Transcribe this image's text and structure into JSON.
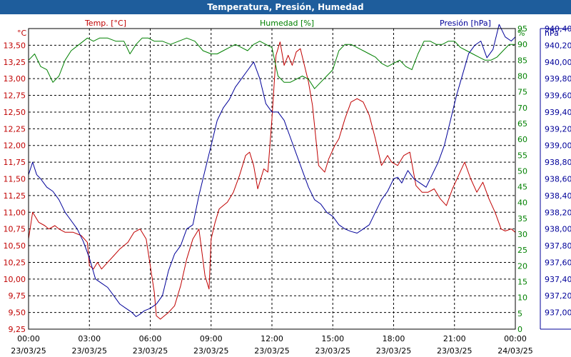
{
  "chart_data": {
    "type": "line",
    "title": "Temperatura, Presión, Humedad",
    "x_ticks": [
      {
        "time": "00:00",
        "date": "23/03/25"
      },
      {
        "time": "03:00",
        "date": "23/03/25"
      },
      {
        "time": "06:00",
        "date": "23/03/25"
      },
      {
        "time": "09:00",
        "date": "23/03/25"
      },
      {
        "time": "12:00",
        "date": "23/03/25"
      },
      {
        "time": "15:00",
        "date": "23/03/25"
      },
      {
        "time": "18:00",
        "date": "23/03/25"
      },
      {
        "time": "21:00",
        "date": "23/03/25"
      },
      {
        "time": "00:00",
        "date": "24/03/25"
      }
    ],
    "x_range_hours": [
      0,
      24
    ],
    "axes": {
      "temp": {
        "unit": "°C",
        "label": "Temp. [°C]",
        "min": 9.25,
        "max": 13.75,
        "color": "#c00000",
        "ticks": [
          "13,50",
          "13,25",
          "13,00",
          "12,75",
          "12,50",
          "12,25",
          "12,00",
          "11,75",
          "11,50",
          "11,25",
          "11,00",
          "10,75",
          "10,50",
          "10,25",
          "10,00",
          "9,75",
          "9,50",
          "9,25"
        ]
      },
      "hum": {
        "unit": "%",
        "label": "Humedad [%]",
        "min": 0,
        "max": 95,
        "color": "#008000",
        "ticks": [
          "95",
          "90",
          "85",
          "80",
          "75",
          "70",
          "65",
          "60",
          "55",
          "50",
          "45",
          "40",
          "35",
          "30",
          "25",
          "20",
          "15",
          "10",
          "5",
          "0"
        ]
      },
      "pres": {
        "unit": "hPa",
        "label": "Presión [hPa]",
        "min": 936.8,
        "max": 940.4,
        "color": "#000099",
        "ticks": [
          "940,40",
          "940,20",
          "940,00",
          "939,80",
          "939,60",
          "939,40",
          "939,20",
          "939,00",
          "938,80",
          "938,60",
          "938,40",
          "938,20",
          "938,00",
          "937,80",
          "937,60",
          "937,40",
          "937,20",
          "937,00"
        ]
      }
    },
    "series": [
      {
        "name": "Temp. [°C]",
        "axis": "temp",
        "color": "#c00000",
        "x": [
          0,
          0.2,
          0.5,
          0.8,
          1,
          1.3,
          1.5,
          1.8,
          2.2,
          2.6,
          2.9,
          3.0,
          3.2,
          3.4,
          3.6,
          3.9,
          4.2,
          4.5,
          4.9,
          5.2,
          5.5,
          5.8,
          6.0,
          6.2,
          6.3,
          6.5,
          6.7,
          6.9,
          7.2,
          7.5,
          7.8,
          8.1,
          8.4,
          8.7,
          8.9,
          9.0,
          9.2,
          9.4,
          9.6,
          9.8,
          10.1,
          10.4,
          10.7,
          10.9,
          11.1,
          11.3,
          11.6,
          11.8,
          12.0,
          12.2,
          12.4,
          12.6,
          12.8,
          13.0,
          13.2,
          13.4,
          13.6,
          13.8,
          14.0,
          14.3,
          14.6,
          14.8,
          15.1,
          15.3,
          15.6,
          15.9,
          16.2,
          16.5,
          16.8,
          17.1,
          17.4,
          17.7,
          17.9,
          18.2,
          18.5,
          18.8,
          19.1,
          19.4,
          19.7,
          20.0,
          20.3,
          20.6,
          20.9,
          21.2,
          21.5,
          21.8,
          22.1,
          22.4,
          22.7,
          23.0,
          23.3,
          23.5,
          23.8,
          24.0
        ],
        "values": [
          10.6,
          11.0,
          10.85,
          10.8,
          10.75,
          10.8,
          10.75,
          10.7,
          10.7,
          10.65,
          10.55,
          10.2,
          10.15,
          10.25,
          10.15,
          10.25,
          10.35,
          10.45,
          10.55,
          10.7,
          10.75,
          10.6,
          10.2,
          9.8,
          9.45,
          9.4,
          9.45,
          9.5,
          9.6,
          9.9,
          10.3,
          10.6,
          10.75,
          10.05,
          9.85,
          10.6,
          10.85,
          11.05,
          11.1,
          11.15,
          11.3,
          11.55,
          11.85,
          11.9,
          11.7,
          11.35,
          11.65,
          11.6,
          12.4,
          13.35,
          13.55,
          13.2,
          13.35,
          13.2,
          13.4,
          13.45,
          13.2,
          12.95,
          12.6,
          11.7,
          11.6,
          11.8,
          12.0,
          12.1,
          12.4,
          12.65,
          12.7,
          12.65,
          12.45,
          12.1,
          11.7,
          11.85,
          11.75,
          11.7,
          11.85,
          11.9,
          11.4,
          11.3,
          11.3,
          11.35,
          11.2,
          11.1,
          11.35,
          11.55,
          11.75,
          11.5,
          11.3,
          11.45,
          11.2,
          11.0,
          10.75,
          10.72,
          10.75,
          10.7
        ]
      },
      {
        "name": "Humedad [%]",
        "axis": "hum",
        "color": "#008000",
        "x": [
          0,
          0.3,
          0.6,
          0.9,
          1.2,
          1.5,
          1.8,
          2.1,
          2.5,
          2.9,
          3.2,
          3.5,
          3.9,
          4.3,
          4.7,
          5.0,
          5.3,
          5.6,
          5.9,
          6.2,
          6.6,
          7.0,
          7.4,
          7.8,
          8.2,
          8.6,
          9.0,
          9.3,
          9.6,
          9.9,
          10.2,
          10.5,
          10.8,
          11.1,
          11.4,
          11.7,
          12.0,
          12.3,
          12.6,
          12.9,
          13.2,
          13.5,
          13.8,
          14.1,
          14.4,
          14.7,
          15.0,
          15.3,
          15.6,
          15.9,
          16.2,
          16.5,
          16.8,
          17.1,
          17.4,
          17.7,
          18.0,
          18.3,
          18.6,
          18.9,
          19.2,
          19.5,
          19.8,
          20.1,
          20.4,
          20.7,
          21.0,
          21.3,
          21.6,
          21.9,
          22.2,
          22.5,
          22.8,
          23.1,
          23.4,
          23.7,
          24.0
        ],
        "values": [
          85,
          87,
          83,
          82,
          78,
          80,
          85,
          88,
          90,
          92,
          91,
          92,
          92,
          91,
          91,
          87,
          90,
          92,
          92,
          91,
          91,
          90,
          91,
          92,
          91,
          88,
          87,
          87,
          88,
          89,
          90,
          89,
          88,
          90,
          91,
          90,
          89,
          80,
          78,
          78,
          79,
          80,
          79,
          76,
          78,
          80,
          82,
          88,
          90,
          90,
          89,
          88,
          87,
          86,
          84,
          83,
          84,
          85,
          83,
          82,
          87,
          91,
          91,
          90,
          90,
          91,
          91,
          89,
          88,
          87,
          86,
          85,
          85,
          86,
          88,
          90,
          90
        ]
      },
      {
        "name": "Presión [hPa]",
        "axis": "pres",
        "color": "#000099",
        "x": [
          0,
          0.2,
          0.4,
          0.6,
          0.9,
          1.2,
          1.5,
          1.8,
          2.1,
          2.4,
          2.7,
          3.0,
          3.3,
          3.6,
          3.9,
          4.2,
          4.5,
          4.8,
          5.1,
          5.3,
          5.5,
          5.7,
          6.0,
          6.3,
          6.6,
          6.9,
          7.2,
          7.5,
          7.8,
          8.1,
          8.4,
          8.7,
          9.0,
          9.3,
          9.6,
          9.9,
          10.2,
          10.5,
          10.8,
          11.1,
          11.4,
          11.7,
          12.0,
          12.3,
          12.6,
          12.9,
          13.2,
          13.5,
          13.8,
          14.1,
          14.4,
          14.7,
          15.0,
          15.3,
          15.6,
          15.9,
          16.2,
          16.5,
          16.8,
          17.1,
          17.4,
          17.7,
          18.0,
          18.2,
          18.4,
          18.7,
          19.0,
          19.3,
          19.6,
          19.9,
          20.2,
          20.5,
          20.8,
          21.1,
          21.4,
          21.7,
          22.0,
          22.3,
          22.6,
          22.9,
          23.2,
          23.5,
          23.8,
          24.0
        ],
        "values": [
          938.65,
          938.8,
          938.65,
          938.6,
          938.5,
          938.45,
          938.35,
          938.2,
          938.1,
          938.0,
          937.85,
          937.65,
          937.4,
          937.35,
          937.3,
          937.2,
          937.1,
          937.05,
          937.0,
          936.95,
          936.98,
          937.02,
          937.05,
          937.1,
          937.2,
          937.5,
          937.7,
          937.8,
          938.0,
          938.05,
          938.4,
          938.7,
          939.0,
          939.3,
          939.45,
          939.55,
          939.7,
          939.8,
          939.9,
          940.0,
          939.8,
          939.5,
          939.4,
          939.4,
          939.3,
          939.1,
          938.9,
          938.7,
          938.5,
          938.35,
          938.3,
          938.2,
          938.15,
          938.05,
          938.0,
          937.97,
          937.95,
          938.0,
          938.05,
          938.2,
          938.35,
          938.45,
          938.6,
          938.62,
          938.55,
          938.7,
          938.6,
          938.55,
          938.5,
          938.65,
          938.8,
          939.0,
          939.3,
          939.6,
          939.85,
          940.1,
          940.2,
          940.25,
          940.05,
          940.15,
          940.45,
          940.3,
          940.25,
          940.3
        ]
      }
    ]
  }
}
